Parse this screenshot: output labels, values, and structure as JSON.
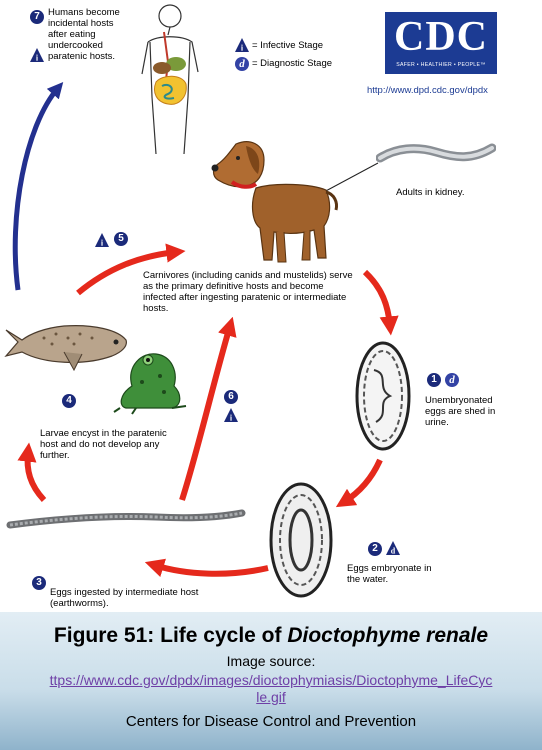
{
  "legend": {
    "infective": "= Infective Stage",
    "diagnostic": "= Diagnostic Stage",
    "infective_glyph": "i",
    "diagnostic_glyph": "d"
  },
  "logo": {
    "text": "CDC",
    "tagline": "SAFER • HEALTHIER • PEOPLE™",
    "url": "http://www.dpd.cdc.gov/dpdx"
  },
  "steps": {
    "s1": {
      "num": "1",
      "text": "Unembryonated eggs are shed in urine."
    },
    "s2": {
      "num": "2",
      "text": "Eggs embryonate in the water."
    },
    "s3": {
      "num": "3",
      "text": "Eggs ingested by intermediate host (earthworms)."
    },
    "s4": {
      "num": "4",
      "text": "Larvae encyst in the paratenic host and do not develop any further."
    },
    "s5": {
      "num": "5",
      "text": "Carnivores (including canids and mustelids) serve as the primary definitive hosts and become infected after ingesting paratenic or intermediate hosts."
    },
    "s6": {
      "num": "6"
    },
    "s7": {
      "num": "7",
      "text": "Humans become incidental hosts after eating undercooked paratenic hosts."
    },
    "adults": "Adults in kidney."
  },
  "caption": {
    "title_prefix": "Figure 51: Life cycle of ",
    "title_species": "Dioctophyme renale",
    "source_label": "Image source:",
    "source_url": "https://www.cdc.gov/dpdx/images/dioctophymiasis/Dioctophyme_LifeCycle.gif",
    "source_line1": "ttps://www.cdc.gov/dpdx/images/dioctophymiasis/Dioctophyme_LifeCyc",
    "source_line2": "le.gif",
    "credit": "Centers for Disease Control and Prevention"
  },
  "colors": {
    "brand_blue": "#1c3b93",
    "badge_navy": "#1b2a7a",
    "arrow_red": "#e5291c",
    "arrow_blue": "#23308f",
    "link_purple": "#6e3fa6"
  }
}
